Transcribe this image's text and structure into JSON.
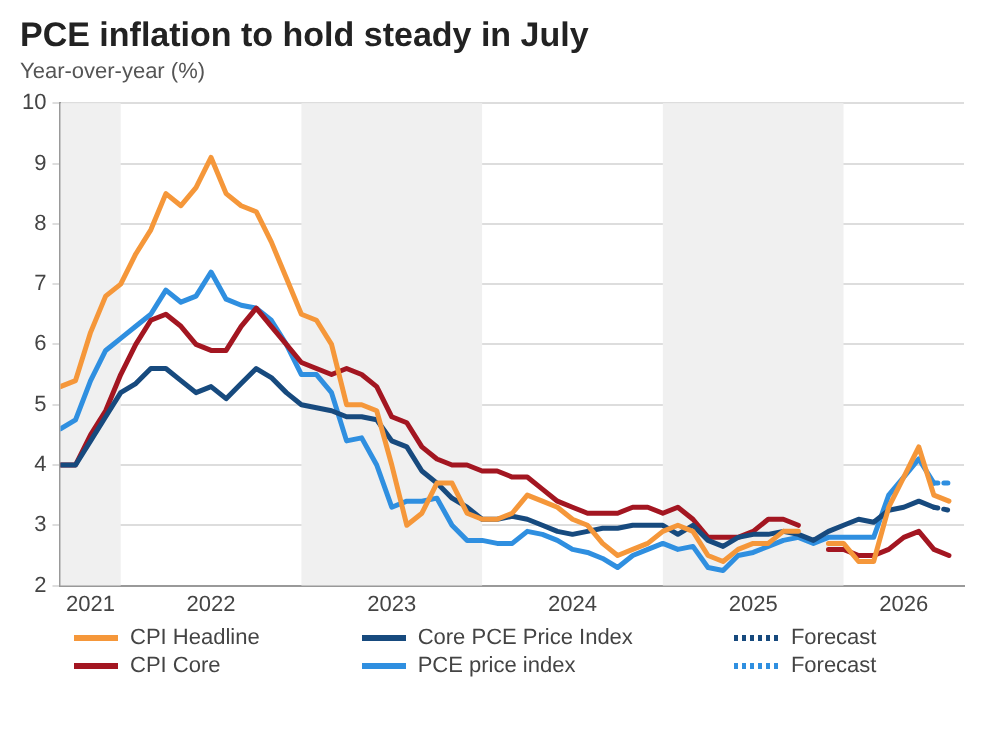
{
  "chart_data": {
    "type": "line",
    "title": "PCE inflation to hold steady in July",
    "subtitle": "Year-over-year (%)",
    "x": [
      "2021-09",
      "2021-10",
      "2021-11",
      "2021-12",
      "2022-01",
      "2022-02",
      "2022-03",
      "2022-04",
      "2022-05",
      "2022-06",
      "2022-07",
      "2022-08",
      "2022-09",
      "2022-10",
      "2022-11",
      "2022-12",
      "2023-01",
      "2023-02",
      "2023-03",
      "2023-04",
      "2023-05",
      "2023-06",
      "2023-07",
      "2023-08",
      "2023-09",
      "2023-10",
      "2023-11",
      "2023-12",
      "2024-01",
      "2024-02",
      "2024-03",
      "2024-04",
      "2024-05",
      "2024-06",
      "2024-07",
      "2024-08",
      "2024-09",
      "2024-10",
      "2024-11",
      "2024-12",
      "2025-01",
      "2025-02",
      "2025-03",
      "2025-04",
      "2025-05",
      "2025-06",
      "2025-07",
      "2025-08",
      "2025-09",
      "2025-10",
      "2025-11",
      "2025-12",
      "2026-01",
      "2026-02",
      "2026-03",
      "2026-04",
      "2026-05",
      "2026-06",
      "2026-07",
      "2026-08"
    ],
    "series": [
      {
        "name": "CPI Headline",
        "color": "#f5973a",
        "values": [
          5.3,
          5.4,
          6.2,
          6.8,
          7.0,
          7.5,
          7.9,
          8.5,
          8.3,
          8.6,
          9.1,
          8.5,
          8.3,
          8.2,
          7.7,
          7.1,
          6.5,
          6.4,
          6.0,
          5.0,
          5.0,
          4.9,
          4.0,
          3.0,
          3.2,
          3.7,
          3.7,
          3.2,
          3.1,
          3.1,
          3.2,
          3.5,
          3.4,
          3.3,
          3.1,
          3.0,
          2.7,
          2.5,
          2.6,
          2.7,
          2.9,
          3.0,
          2.9,
          2.5,
          2.4,
          2.6,
          2.7,
          2.7,
          2.9,
          2.9,
          null,
          2.7,
          2.7,
          2.4,
          2.4,
          3.3,
          3.8,
          4.3,
          3.5,
          3.4
        ]
      },
      {
        "name": "Core PCE Price Index",
        "color": "#174a7e",
        "values": [
          4.0,
          4.0,
          4.4,
          4.8,
          5.2,
          5.35,
          5.6,
          5.6,
          5.4,
          5.2,
          5.3,
          5.1,
          5.35,
          5.6,
          5.45,
          5.2,
          5.0,
          4.95,
          4.9,
          4.8,
          4.8,
          4.75,
          4.4,
          4.3,
          3.9,
          3.7,
          3.45,
          3.3,
          3.1,
          3.1,
          3.15,
          3.1,
          3.0,
          2.9,
          2.85,
          2.9,
          2.95,
          2.95,
          3.0,
          3.0,
          3.0,
          2.85,
          3.0,
          2.75,
          2.65,
          2.8,
          2.85,
          2.85,
          2.9,
          2.85,
          2.75,
          2.9,
          3.0,
          3.1,
          3.05,
          3.25,
          3.3,
          3.4,
          3.3,
          null
        ]
      },
      {
        "name": "Forecast",
        "color": "#174a7e",
        "line_style": "dotted",
        "x": [
          "2026-07",
          "2026-08"
        ],
        "values": [
          3.3,
          3.25
        ]
      },
      {
        "name": "CPI Core",
        "color": "#a31621",
        "values": [
          4.0,
          4.0,
          4.5,
          4.9,
          5.5,
          6.0,
          6.4,
          6.5,
          6.3,
          6.0,
          5.9,
          5.9,
          6.3,
          6.6,
          6.3,
          6.0,
          5.7,
          5.6,
          5.5,
          5.6,
          5.5,
          5.3,
          4.8,
          4.7,
          4.3,
          4.1,
          4.0,
          4.0,
          3.9,
          3.9,
          3.8,
          3.8,
          3.6,
          3.4,
          3.3,
          3.2,
          3.2,
          3.2,
          3.3,
          3.3,
          3.2,
          3.3,
          3.1,
          2.8,
          2.8,
          2.8,
          2.9,
          3.1,
          3.1,
          3.0,
          null,
          2.6,
          2.6,
          2.5,
          2.5,
          2.6,
          2.8,
          2.9,
          2.6,
          2.5
        ]
      },
      {
        "name": "PCE price index",
        "color": "#2f8fe0",
        "values": [
          4.6,
          4.75,
          5.4,
          5.9,
          6.1,
          6.3,
          6.5,
          6.9,
          6.7,
          6.8,
          7.2,
          6.75,
          6.65,
          6.6,
          6.4,
          6.0,
          5.5,
          5.5,
          5.2,
          4.4,
          4.45,
          4.0,
          3.3,
          3.4,
          3.4,
          3.45,
          3.0,
          2.75,
          2.75,
          2.7,
          2.7,
          2.9,
          2.85,
          2.75,
          2.6,
          2.55,
          2.45,
          2.3,
          2.5,
          2.6,
          2.7,
          2.6,
          2.65,
          2.3,
          2.25,
          2.5,
          2.55,
          2.65,
          2.75,
          2.8,
          2.7,
          2.8,
          2.8,
          2.8,
          2.8,
          3.5,
          3.8,
          4.1,
          3.7,
          null
        ]
      },
      {
        "name": "Forecast",
        "color": "#2f8fe0",
        "line_style": "dotted",
        "x": [
          "2026-07",
          "2026-08"
        ],
        "values": [
          3.7,
          3.7
        ]
      }
    ],
    "xlim": [
      "2021-09",
      "2026-09"
    ],
    "xticks": [
      {
        "value": "2021-11",
        "label": "2021"
      },
      {
        "value": "2022-07",
        "label": "2022"
      },
      {
        "value": "2023-07",
        "label": "2023"
      },
      {
        "value": "2024-07",
        "label": "2024"
      },
      {
        "value": "2025-07",
        "label": "2025"
      },
      {
        "value": "2026-05",
        "label": "2026"
      }
    ],
    "ylim": [
      2,
      10
    ],
    "yticks": [
      2,
      3,
      4,
      5,
      6,
      7,
      8,
      9,
      10
    ],
    "bands": [
      {
        "axis": "x",
        "from": "2021-09",
        "to": "2022-01",
        "color": "#f0f0f0"
      },
      {
        "axis": "x",
        "from": "2023-01",
        "to": "2024-01",
        "color": "#f0f0f0"
      },
      {
        "axis": "x",
        "from": "2025-01",
        "to": "2026-01",
        "color": "#f0f0f0"
      }
    ],
    "grid": "y",
    "legend": "bottom",
    "marker": "none",
    "line_style": "solid"
  }
}
